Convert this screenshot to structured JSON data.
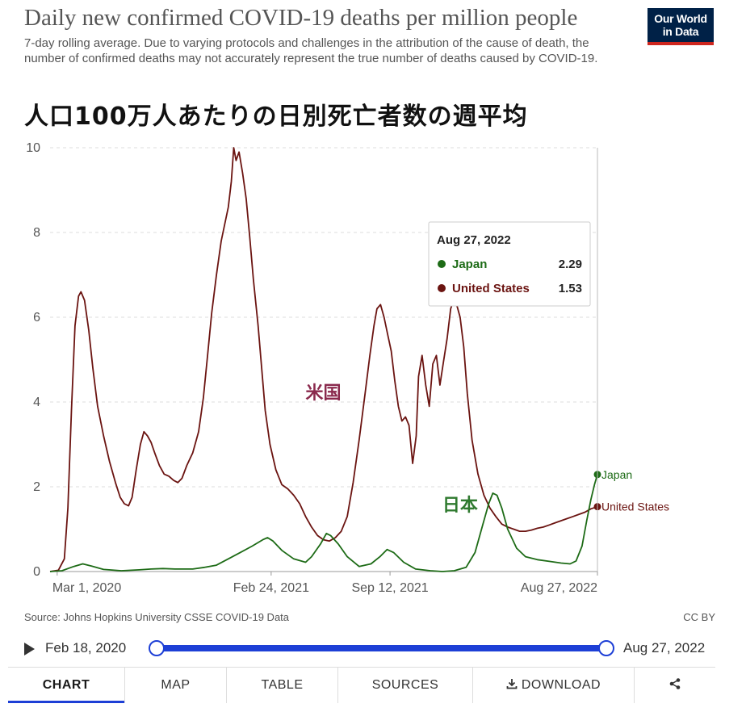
{
  "header": {
    "title": "Daily new confirmed COVID-19 deaths per million people",
    "subtitle": "7-day rolling average. Due to varying protocols and challenges in the attribution of the cause of death, the number of confirmed deaths may not accurately represent the true number of deaths caused by COVID-19.",
    "logo_line1": "Our World",
    "logo_line2": "in Data",
    "overlay_title": "人口100万人あたりの日別死亡者数の週平均"
  },
  "chart_data": {
    "type": "line",
    "x_start": "2020-02-18",
    "x_end": "2022-08-27",
    "xlim": [
      0,
      921
    ],
    "ylim": [
      0,
      10
    ],
    "y_ticks": [
      "0",
      "2",
      "4",
      "6",
      "8",
      "10"
    ],
    "x_ticks": [
      {
        "label": "Mar 1, 2020",
        "day": 12
      },
      {
        "label": "Feb 24, 2021",
        "day": 372
      },
      {
        "label": "Sep 12, 2021",
        "day": 572
      },
      {
        "label": "Aug 27, 2022",
        "day": 921
      }
    ],
    "grid": "horizontal-dashed",
    "series": [
      {
        "name": "United States",
        "color": "#6b1411",
        "end_value": 1.53,
        "points": [
          [
            0,
            0
          ],
          [
            14,
            0.03
          ],
          [
            24,
            0.3
          ],
          [
            30,
            1.5
          ],
          [
            36,
            3.8
          ],
          [
            42,
            5.8
          ],
          [
            48,
            6.5
          ],
          [
            52,
            6.6
          ],
          [
            58,
            6.4
          ],
          [
            65,
            5.7
          ],
          [
            72,
            4.8
          ],
          [
            80,
            3.9
          ],
          [
            90,
            3.2
          ],
          [
            100,
            2.6
          ],
          [
            110,
            2.1
          ],
          [
            118,
            1.75
          ],
          [
            125,
            1.6
          ],
          [
            132,
            1.55
          ],
          [
            138,
            1.75
          ],
          [
            145,
            2.4
          ],
          [
            152,
            3.0
          ],
          [
            158,
            3.3
          ],
          [
            164,
            3.2
          ],
          [
            170,
            3.05
          ],
          [
            176,
            2.8
          ],
          [
            184,
            2.5
          ],
          [
            192,
            2.3
          ],
          [
            200,
            2.25
          ],
          [
            208,
            2.15
          ],
          [
            215,
            2.1
          ],
          [
            222,
            2.2
          ],
          [
            230,
            2.5
          ],
          [
            240,
            2.8
          ],
          [
            250,
            3.3
          ],
          [
            258,
            4.1
          ],
          [
            265,
            5.1
          ],
          [
            272,
            6.1
          ],
          [
            280,
            7.0
          ],
          [
            288,
            7.8
          ],
          [
            294,
            8.2
          ],
          [
            300,
            8.6
          ],
          [
            305,
            9.2
          ],
          [
            309,
            10.0
          ],
          [
            313,
            9.7
          ],
          [
            318,
            9.9
          ],
          [
            324,
            9.4
          ],
          [
            330,
            8.8
          ],
          [
            336,
            7.9
          ],
          [
            342,
            6.9
          ],
          [
            350,
            5.8
          ],
          [
            356,
            4.8
          ],
          [
            362,
            3.8
          ],
          [
            370,
            3.0
          ],
          [
            380,
            2.4
          ],
          [
            390,
            2.05
          ],
          [
            400,
            1.95
          ],
          [
            410,
            1.8
          ],
          [
            420,
            1.6
          ],
          [
            430,
            1.3
          ],
          [
            440,
            1.05
          ],
          [
            450,
            0.85
          ],
          [
            460,
            0.75
          ],
          [
            470,
            0.72
          ],
          [
            480,
            0.8
          ],
          [
            490,
            0.95
          ],
          [
            500,
            1.3
          ],
          [
            510,
            2.1
          ],
          [
            520,
            3.1
          ],
          [
            530,
            4.2
          ],
          [
            538,
            5.1
          ],
          [
            545,
            5.8
          ],
          [
            550,
            6.2
          ],
          [
            556,
            6.3
          ],
          [
            562,
            6.0
          ],
          [
            568,
            5.6
          ],
          [
            574,
            5.2
          ],
          [
            580,
            4.5
          ],
          [
            586,
            3.9
          ],
          [
            592,
            3.55
          ],
          [
            598,
            3.65
          ],
          [
            604,
            3.45
          ],
          [
            610,
            2.55
          ],
          [
            616,
            3.2
          ],
          [
            620,
            4.6
          ],
          [
            626,
            5.1
          ],
          [
            632,
            4.4
          ],
          [
            638,
            3.9
          ],
          [
            644,
            4.9
          ],
          [
            650,
            5.1
          ],
          [
            656,
            4.4
          ],
          [
            662,
            4.95
          ],
          [
            668,
            5.5
          ],
          [
            674,
            6.2
          ],
          [
            680,
            6.45
          ],
          [
            685,
            6.25
          ],
          [
            690,
            6.0
          ],
          [
            696,
            5.3
          ],
          [
            702,
            4.2
          ],
          [
            710,
            3.1
          ],
          [
            720,
            2.3
          ],
          [
            730,
            1.8
          ],
          [
            740,
            1.5
          ],
          [
            750,
            1.3
          ],
          [
            760,
            1.12
          ],
          [
            770,
            1.05
          ],
          [
            780,
            1.0
          ],
          [
            790,
            0.95
          ],
          [
            800,
            0.95
          ],
          [
            810,
            0.98
          ],
          [
            820,
            1.02
          ],
          [
            830,
            1.05
          ],
          [
            840,
            1.1
          ],
          [
            850,
            1.15
          ],
          [
            860,
            1.2
          ],
          [
            870,
            1.25
          ],
          [
            880,
            1.3
          ],
          [
            890,
            1.35
          ],
          [
            900,
            1.4
          ],
          [
            910,
            1.48
          ],
          [
            921,
            1.53
          ]
        ]
      },
      {
        "name": "Japan",
        "color": "#1d6b16",
        "end_value": 2.29,
        "points": [
          [
            0,
            0
          ],
          [
            20,
            0.02
          ],
          [
            40,
            0.12
          ],
          [
            55,
            0.18
          ],
          [
            70,
            0.13
          ],
          [
            90,
            0.05
          ],
          [
            120,
            0.02
          ],
          [
            150,
            0.04
          ],
          [
            170,
            0.06
          ],
          [
            190,
            0.07
          ],
          [
            210,
            0.06
          ],
          [
            240,
            0.06
          ],
          [
            260,
            0.1
          ],
          [
            280,
            0.15
          ],
          [
            300,
            0.3
          ],
          [
            320,
            0.45
          ],
          [
            340,
            0.6
          ],
          [
            358,
            0.75
          ],
          [
            366,
            0.8
          ],
          [
            375,
            0.72
          ],
          [
            390,
            0.5
          ],
          [
            410,
            0.3
          ],
          [
            430,
            0.22
          ],
          [
            440,
            0.35
          ],
          [
            455,
            0.65
          ],
          [
            465,
            0.9
          ],
          [
            472,
            0.85
          ],
          [
            485,
            0.65
          ],
          [
            500,
            0.35
          ],
          [
            520,
            0.12
          ],
          [
            540,
            0.18
          ],
          [
            555,
            0.35
          ],
          [
            567,
            0.52
          ],
          [
            578,
            0.45
          ],
          [
            595,
            0.22
          ],
          [
            615,
            0.06
          ],
          [
            640,
            0.02
          ],
          [
            660,
            0.0
          ],
          [
            680,
            0.02
          ],
          [
            700,
            0.1
          ],
          [
            715,
            0.45
          ],
          [
            728,
            1.1
          ],
          [
            738,
            1.6
          ],
          [
            745,
            1.85
          ],
          [
            752,
            1.8
          ],
          [
            760,
            1.5
          ],
          [
            770,
            1.0
          ],
          [
            785,
            0.55
          ],
          [
            800,
            0.35
          ],
          [
            820,
            0.28
          ],
          [
            840,
            0.24
          ],
          [
            860,
            0.2
          ],
          [
            875,
            0.18
          ],
          [
            885,
            0.25
          ],
          [
            895,
            0.6
          ],
          [
            903,
            1.2
          ],
          [
            910,
            1.7
          ],
          [
            916,
            2.05
          ],
          [
            921,
            2.29
          ]
        ]
      }
    ],
    "end_labels": [
      "Japan",
      "United States"
    ],
    "annotations": [
      {
        "text": "米国",
        "color": "#8a2a4d",
        "day": 430,
        "value": 4.0
      },
      {
        "text": "日本",
        "color": "#2f7a2f",
        "day": 660,
        "value": 1.35
      }
    ],
    "tooltip": {
      "date": "Aug 27, 2022",
      "rows": [
        {
          "name": "Japan",
          "value": "2.29",
          "color": "#1d6b16"
        },
        {
          "name": "United States",
          "value": "1.53",
          "color": "#6b1411"
        }
      ]
    }
  },
  "footer": {
    "source": "Source: Johns Hopkins University CSSE COVID-19 Data",
    "license": "CC BY"
  },
  "timeline": {
    "start_label": "Feb 18, 2020",
    "end_label": "Aug 27, 2022"
  },
  "tabs": {
    "chart": "CHART",
    "map": "MAP",
    "table": "TABLE",
    "sources": "SOURCES",
    "download": "DOWNLOAD"
  }
}
